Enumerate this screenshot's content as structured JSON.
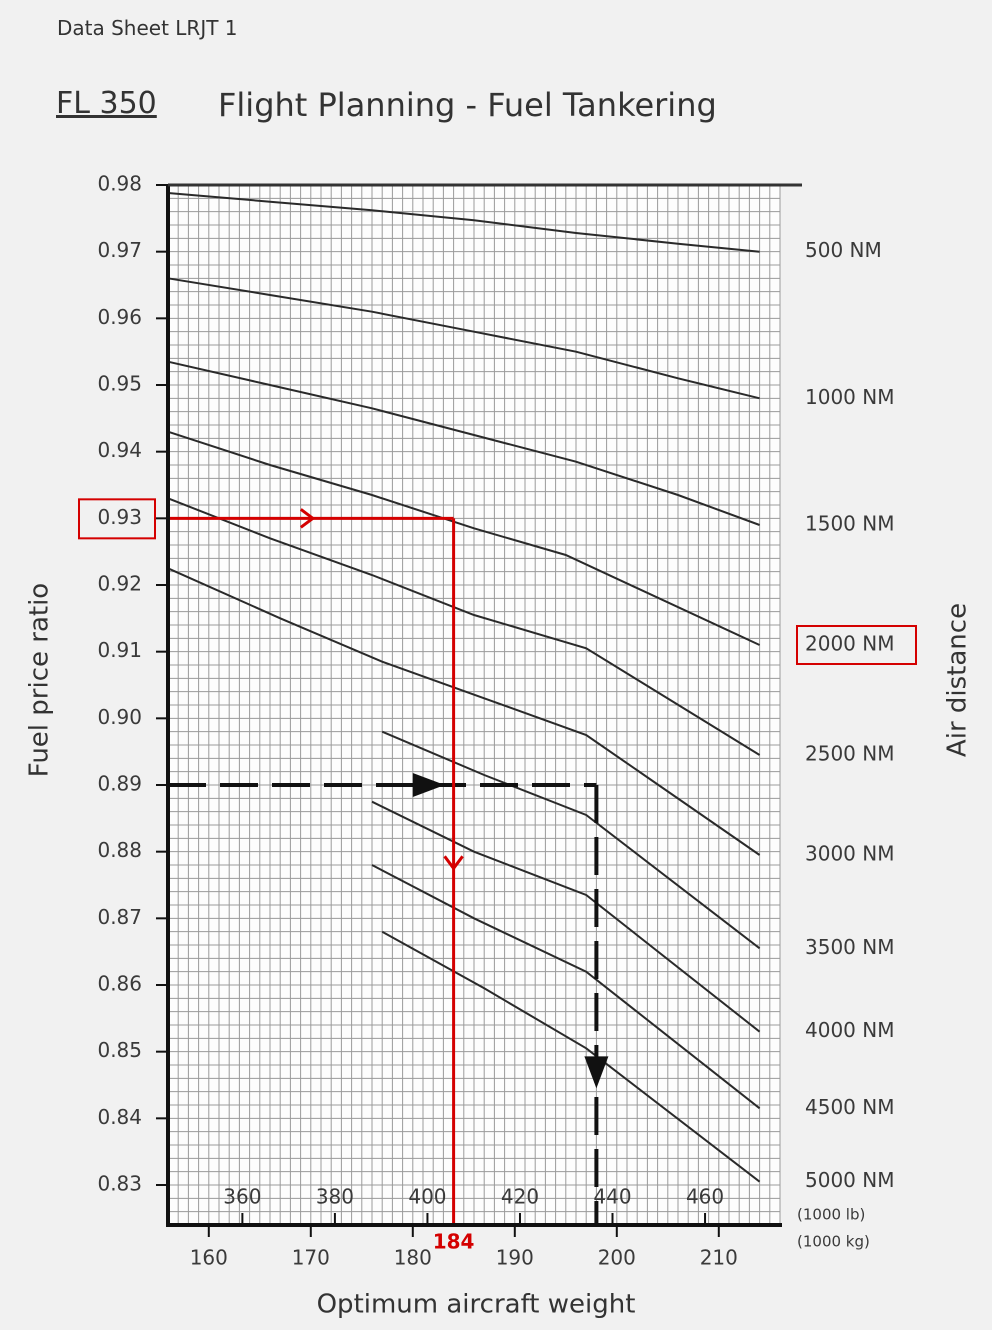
{
  "header": {
    "sheet_label": "Data Sheet LRJT 1",
    "flight_level": "FL 350",
    "title": "Flight Planning - Fuel Tankering"
  },
  "chart_data": {
    "type": "line",
    "title": "Flight Planning - Fuel Tankering",
    "xlabel": "Optimum aircraft weight",
    "ylabel": "Fuel price ratio",
    "y2label": "Air distance",
    "xlim": [
      156,
      216
    ],
    "ylim": [
      0.824,
      0.98
    ],
    "x_ticks_kg": [
      "160",
      "170",
      "180",
      "190",
      "200",
      "210"
    ],
    "x_ticks_lb": [
      "360",
      "380",
      "400",
      "420",
      "440",
      "460"
    ],
    "x_unit_lb": "(1000 lb)",
    "x_unit_kg": "(1000 kg)",
    "y_ticks": [
      "0.98",
      "0.97",
      "0.96",
      "0.95",
      "0.94",
      "0.93",
      "0.92",
      "0.91",
      "0.90",
      "0.89",
      "0.88",
      "0.87",
      "0.86",
      "0.85",
      "0.84",
      "0.83"
    ],
    "series": [
      {
        "name": "500 NM",
        "points": [
          [
            156,
            0.9788
          ],
          [
            166,
            0.9775
          ],
          [
            176,
            0.9762
          ],
          [
            186,
            0.9747
          ],
          [
            196,
            0.9728
          ],
          [
            206,
            0.9712
          ],
          [
            214,
            0.97
          ]
        ]
      },
      {
        "name": "1000 NM",
        "points": [
          [
            156,
            0.966
          ],
          [
            166,
            0.9635
          ],
          [
            176,
            0.961
          ],
          [
            186,
            0.958
          ],
          [
            196,
            0.955
          ],
          [
            206,
            0.951
          ],
          [
            214,
            0.948
          ]
        ]
      },
      {
        "name": "1500 NM",
        "points": [
          [
            156,
            0.9535
          ],
          [
            166,
            0.95
          ],
          [
            176,
            0.9465
          ],
          [
            186,
            0.9425
          ],
          [
            196,
            0.9385
          ],
          [
            206,
            0.9335
          ],
          [
            214,
            0.929
          ]
        ]
      },
      {
        "name": "2000 NM",
        "points": [
          [
            156,
            0.943
          ],
          [
            166,
            0.938
          ],
          [
            176,
            0.9335
          ],
          [
            186,
            0.9285
          ],
          [
            195,
            0.9245
          ],
          [
            214,
            0.911
          ]
        ]
      },
      {
        "name": "2500 NM",
        "points": [
          [
            156,
            0.933
          ],
          [
            166,
            0.927
          ],
          [
            176,
            0.9215
          ],
          [
            186,
            0.9155
          ],
          [
            197,
            0.9105
          ],
          [
            214,
            0.8945
          ]
        ]
      },
      {
        "name": "3000 NM",
        "points": [
          [
            156,
            0.9225
          ],
          [
            167,
            0.915
          ],
          [
            177,
            0.9085
          ],
          [
            187,
            0.903
          ],
          [
            197,
            0.8975
          ],
          [
            214,
            0.8795
          ]
        ]
      },
      {
        "name": "3500 NM",
        "points": [
          [
            177,
            0.898
          ],
          [
            187,
            0.8915
          ],
          [
            197,
            0.8855
          ],
          [
            214,
            0.8655
          ]
        ]
      },
      {
        "name": "4000 NM",
        "points": [
          [
            176,
            0.8875
          ],
          [
            186,
            0.88
          ],
          [
            197,
            0.8735
          ],
          [
            214,
            0.853
          ]
        ]
      },
      {
        "name": "4500 NM",
        "points": [
          [
            176,
            0.878
          ],
          [
            186,
            0.87
          ],
          [
            197,
            0.862
          ],
          [
            214,
            0.8415
          ]
        ]
      },
      {
        "name": "5000 NM",
        "points": [
          [
            177,
            0.868
          ],
          [
            187,
            0.8595
          ],
          [
            197,
            0.8505
          ],
          [
            214,
            0.8305
          ]
        ]
      }
    ],
    "annotations": {
      "highlighted_ratio": "0.93",
      "highlighted_distance": "2000 NM",
      "result_weight": "184",
      "example_path": {
        "start_ratio": 0.89,
        "turn_weight": 198,
        "end_ratio": 0.824
      },
      "solution_path": {
        "start_ratio": 0.93,
        "weight": 184,
        "end_ratio": 0.824
      }
    }
  }
}
